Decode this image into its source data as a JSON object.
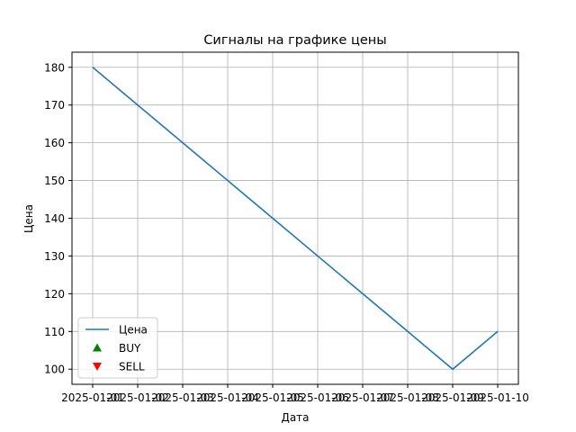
{
  "chart_data": {
    "type": "line",
    "title": "Сигналы на графике цены",
    "xlabel": "Дата",
    "ylabel": "Цена",
    "x": [
      "2025-01-01",
      "2025-01-02",
      "2025-01-03",
      "2025-01-04",
      "2025-01-05",
      "2025-01-06",
      "2025-01-07",
      "2025-01-08",
      "2025-01-09",
      "2025-01-10"
    ],
    "series": [
      {
        "name": "Цена",
        "values": [
          180,
          170,
          160,
          150,
          140,
          130,
          120,
          110,
          100,
          110
        ]
      }
    ],
    "xticks": [
      "2025-01-01",
      "2025-01-02",
      "2025-01-03",
      "2025-01-04",
      "2025-01-05",
      "2025-01-06",
      "2025-01-07",
      "2025-01-08",
      "2025-01-09",
      "2025-01-10"
    ],
    "yticks": [
      100,
      110,
      120,
      130,
      140,
      150,
      160,
      170,
      180
    ],
    "ylim": [
      96,
      184
    ],
    "grid": true,
    "legend": {
      "placement": "lower-left",
      "entries": [
        {
          "label": "Цена",
          "marker": "line",
          "color": "#1f77b4"
        },
        {
          "label": "BUY",
          "marker": "triangle-up",
          "color": "#008000"
        },
        {
          "label": "SELL",
          "marker": "triangle-down",
          "color": "#ff0000"
        }
      ]
    },
    "colors": {
      "line": "#1f77b4",
      "grid": "#b0b0b0",
      "axes": "#000000"
    }
  }
}
